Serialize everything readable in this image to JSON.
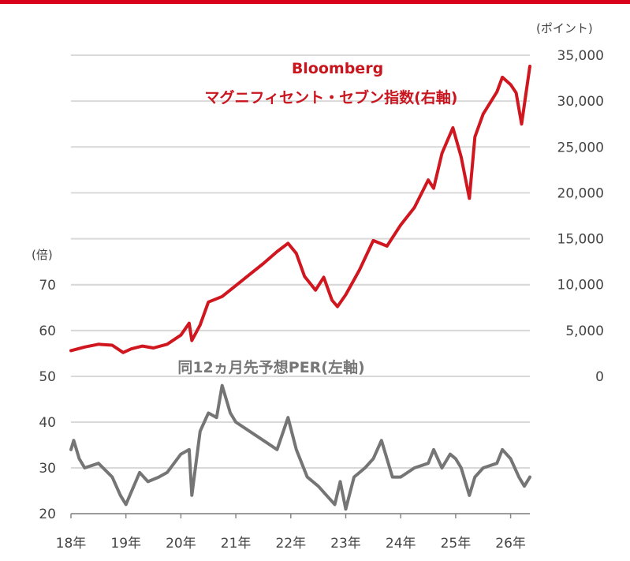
{
  "chart_data": {
    "type": "line",
    "right_unit": "(ポイント)",
    "left_unit": "(倍)",
    "x_ticks": [
      "18年",
      "19年",
      "20年",
      "21年",
      "22年",
      "23年",
      "24年",
      "25年",
      "26年"
    ],
    "right_axis": {
      "ticks": [
        "35,000",
        "30,000",
        "25,000",
        "20,000",
        "15,000",
        "10,000",
        "5,000",
        "0"
      ],
      "ylim": [
        0,
        35000
      ]
    },
    "left_axis": {
      "ticks": [
        "70",
        "60",
        "50",
        "40",
        "30",
        "20"
      ],
      "ylim": [
        20,
        70
      ]
    },
    "grid": true,
    "series": [
      {
        "name": "Bloombergマグニフィセント・セブン指数(右軸)",
        "label_line1": "Bloomberg",
        "label_line2": "マグニフィセント・セブン指数(右軸)",
        "axis": "right",
        "color": "#d0161f",
        "x": [
          2018.0,
          2018.25,
          2018.5,
          2018.75,
          2018.95,
          2019.1,
          2019.3,
          2019.5,
          2019.75,
          2020.0,
          2020.15,
          2020.2,
          2020.35,
          2020.5,
          2020.75,
          2021.0,
          2021.25,
          2021.5,
          2021.75,
          2021.95,
          2022.1,
          2022.25,
          2022.45,
          2022.6,
          2022.75,
          2022.85,
          2023.0,
          2023.25,
          2023.5,
          2023.75,
          2024.0,
          2024.25,
          2024.5,
          2024.6,
          2024.75,
          2024.95,
          2025.1,
          2025.25,
          2025.35,
          2025.5,
          2025.75,
          2025.85,
          2026.0,
          2026.1,
          2026.2,
          2026.35
        ],
        "values": [
          2800,
          3200,
          3500,
          3400,
          2600,
          3000,
          3300,
          3100,
          3500,
          4500,
          5800,
          3900,
          5600,
          8100,
          8700,
          9900,
          11100,
          12300,
          13600,
          14500,
          13400,
          10900,
          9400,
          10800,
          8300,
          7600,
          8900,
          11600,
          14800,
          14200,
          16500,
          18400,
          21400,
          20500,
          24300,
          27100,
          23900,
          19400,
          26100,
          28600,
          31000,
          32600,
          31800,
          30900,
          27500,
          33800
        ]
      },
      {
        "name": "同12ヵ月先予想PER(左軸)",
        "label": "同12ヵ月先予想PER(左軸)",
        "axis": "left",
        "color": "#757575",
        "x": [
          2018.0,
          2018.05,
          2018.15,
          2018.25,
          2018.5,
          2018.75,
          2018.9,
          2019.0,
          2019.25,
          2019.4,
          2019.6,
          2019.75,
          2020.0,
          2020.15,
          2020.2,
          2020.35,
          2020.5,
          2020.65,
          2020.75,
          2020.9,
          2021.0,
          2021.25,
          2021.5,
          2021.75,
          2021.95,
          2022.1,
          2022.3,
          2022.5,
          2022.65,
          2022.8,
          2022.9,
          2023.0,
          2023.15,
          2023.35,
          2023.5,
          2023.65,
          2023.85,
          2024.0,
          2024.25,
          2024.5,
          2024.6,
          2024.75,
          2024.9,
          2025.0,
          2025.1,
          2025.25,
          2025.35,
          2025.5,
          2025.75,
          2025.85,
          2026.0,
          2026.15,
          2026.25,
          2026.35
        ],
        "values": [
          34,
          36,
          32,
          30,
          31,
          28,
          24,
          22,
          29,
          27,
          28,
          29,
          33,
          34,
          24,
          38,
          42,
          41,
          48,
          42,
          40,
          38,
          36,
          34,
          41,
          34,
          28,
          26,
          24,
          22,
          27,
          21,
          28,
          30,
          32,
          36,
          28,
          28,
          30,
          31,
          34,
          30,
          33,
          32,
          30,
          24,
          28,
          30,
          31,
          34,
          32,
          28,
          26,
          28
        ]
      }
    ]
  }
}
